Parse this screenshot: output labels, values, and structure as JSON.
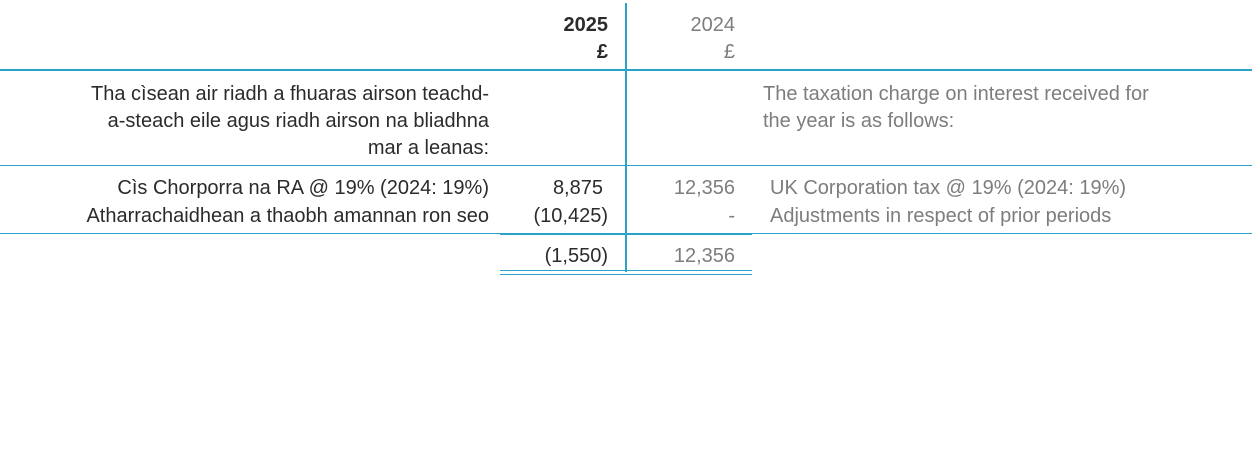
{
  "header": {
    "year_current": "2025",
    "currency_current": "£",
    "year_prior": "2024",
    "currency_prior": "£"
  },
  "intro": {
    "gaelic_lines": [
      "Tha cìsean air riadh a fhuaras airson teachd-",
      "a-steach eile agus riadh airson na bliadhna",
      "mar a leanas:"
    ],
    "english_lines": [
      "The taxation charge on interest received for",
      "the year is as follows:"
    ]
  },
  "rows": [
    {
      "gaelic": "Cìs Chorporra na RA @ 19% (2024: 19%)",
      "current": "8,875",
      "prior": "12,356",
      "english": "UK Corporation tax @ 19% (2024: 19%)"
    },
    {
      "gaelic": "Atharrachaidhean a thaobh amannan ron seo",
      "current": "(10,425)",
      "prior": "-",
      "english": "Adjustments in respect of prior periods"
    }
  ],
  "total": {
    "current": "(1,550)",
    "prior": "12,356"
  },
  "colors": {
    "rule": "#29a3c7",
    "text_dark": "#2b2b2b",
    "text_grey": "#7d7d7d"
  }
}
